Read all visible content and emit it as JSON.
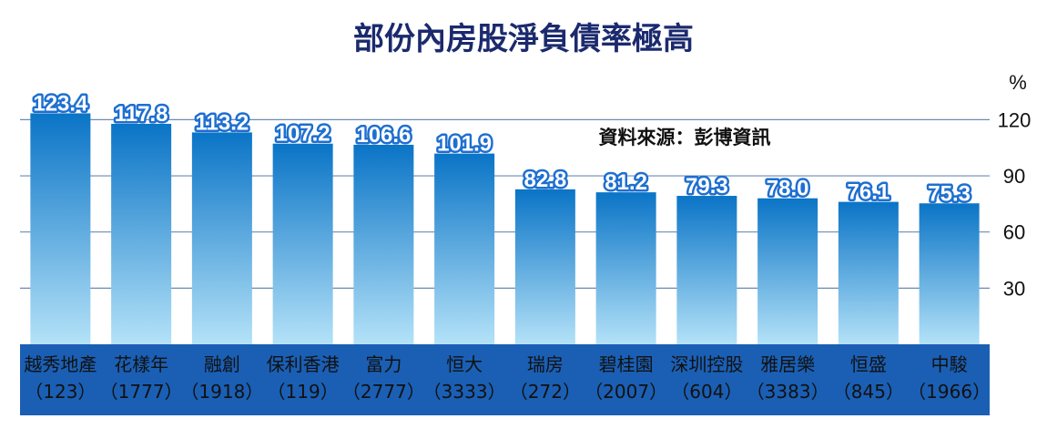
{
  "chart_data": {
    "type": "bar",
    "title": "部份內房股淨負債率極高",
    "source": "資料來源：彭博資訊",
    "unit": "%",
    "ylim": [
      0,
      120
    ],
    "yticks": [
      30,
      60,
      90,
      120
    ],
    "grid": true,
    "categories": [
      {
        "name": "越秀地產",
        "code": "（123）"
      },
      {
        "name": "花樣年",
        "code": "（1777）"
      },
      {
        "name": "融創",
        "code": "（1918）"
      },
      {
        "name": "保利香港",
        "code": "（119）"
      },
      {
        "name": "富力",
        "code": "（2777）"
      },
      {
        "name": "恒大",
        "code": "（3333）"
      },
      {
        "name": "瑞房",
        "code": "（272）"
      },
      {
        "name": "碧桂園",
        "code": "（2007）"
      },
      {
        "name": "深圳控股",
        "code": "（604）"
      },
      {
        "name": "雅居樂",
        "code": "（3383）"
      },
      {
        "name": "恒盛",
        "code": "（845）"
      },
      {
        "name": "中駿",
        "code": "（1966）"
      }
    ],
    "values": [
      123.4,
      117.8,
      113.2,
      107.2,
      106.6,
      101.9,
      82.8,
      81.2,
      79.3,
      78.0,
      76.1,
      75.3
    ],
    "value_labels": [
      "123.4",
      "117.8",
      "113.2",
      "107.2",
      "106.6",
      "101.9",
      "82.8",
      "81.2",
      "79.3",
      "78.0",
      "76.1",
      "75.3"
    ],
    "colors": {
      "bar_top": "#0a74c6",
      "bar_bottom": "#b4e2f8",
      "category_band": "#1a5fb4",
      "grid": "#6b8bb3",
      "label_outline": "#1e6fd0",
      "title": "#1b2a6e"
    }
  }
}
